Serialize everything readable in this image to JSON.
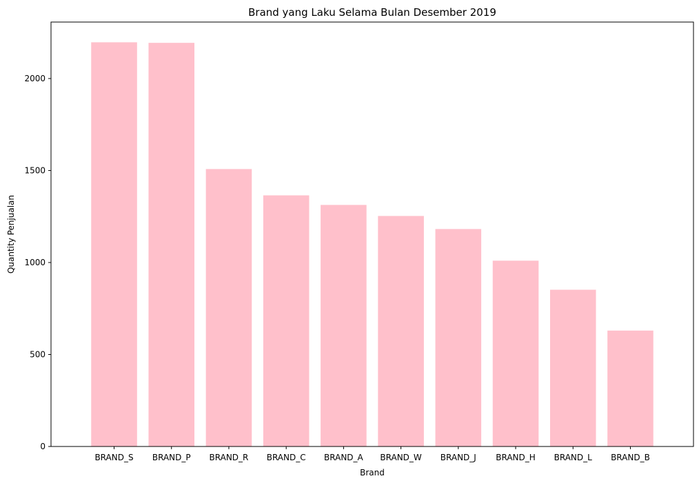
{
  "chart_data": {
    "type": "bar",
    "title": "Brand yang Laku Selama Bulan Desember 2019",
    "xlabel": "Brand",
    "ylabel": "Quantity Penjualan",
    "categories": [
      "BRAND_S",
      "BRAND_P",
      "BRAND_R",
      "BRAND_C",
      "BRAND_A",
      "BRAND_W",
      "BRAND_J",
      "BRAND_H",
      "BRAND_L",
      "BRAND_B"
    ],
    "values": [
      2197,
      2194,
      1508,
      1365,
      1313,
      1253,
      1182,
      1010,
      852,
      630
    ],
    "ylim": [
      0,
      2307
    ],
    "yticks": [
      0,
      500,
      1000,
      1500,
      2000
    ],
    "bar_color": "#ffc0cb",
    "grid": false,
    "legend": "none"
  }
}
